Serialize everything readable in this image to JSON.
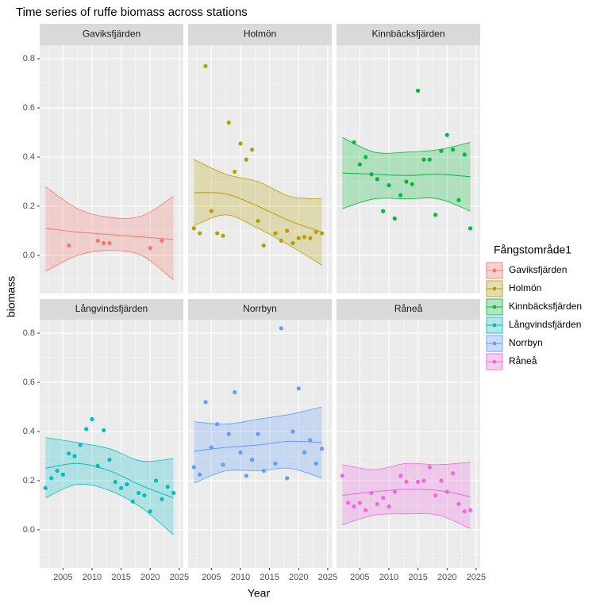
{
  "chart_data": {
    "type": "faceted-scatter-smooth",
    "title": "Time series of ruffe biomass across stations",
    "x_label": "Year",
    "y_label": "biomass",
    "legend_title": "Fångstområde1",
    "xlim": [
      2001,
      2025.7
    ],
    "xticks": [
      2005,
      2010,
      2015,
      2020,
      2025
    ],
    "ylim": [
      -0.155,
      0.855
    ],
    "yticks": [
      0.0,
      0.2,
      0.4,
      0.6,
      0.8
    ],
    "y_tick_labels": [
      "0.0",
      "0.2",
      "0.4",
      "0.6",
      "0.8"
    ],
    "grid": true,
    "fit_x": [
      2002,
      2007.5,
      2013,
      2018.5,
      2024
    ],
    "series": [
      {
        "name": "Gaviksfjärden",
        "color": "#F8766D",
        "x": [
          2006,
          2011,
          2012,
          2013,
          2020,
          2022
        ],
        "values": [
          0.04,
          0.06,
          0.05,
          0.05,
          0.03,
          0.06
        ],
        "fit": [
          0.11,
          0.095,
          0.085,
          0.075,
          0.065
        ],
        "fit_lower": [
          -0.065,
          0.0,
          0.02,
          0.0,
          -0.1
        ],
        "fit_upper": [
          0.28,
          0.19,
          0.155,
          0.16,
          0.24
        ]
      },
      {
        "name": "Holmön",
        "color": "#B79F00",
        "x": [
          2002,
          2003,
          2004,
          2005,
          2006,
          2007,
          2008,
          2009,
          2010,
          2011,
          2012,
          2013,
          2014,
          2016,
          2017,
          2018,
          2019,
          2020,
          2021,
          2022,
          2023,
          2024
        ],
        "values": [
          0.11,
          0.09,
          0.77,
          0.18,
          0.09,
          0.08,
          0.54,
          0.34,
          0.455,
          0.39,
          0.43,
          0.14,
          0.04,
          0.09,
          0.06,
          0.1,
          0.05,
          0.07,
          0.075,
          0.07,
          0.095,
          0.09
        ],
        "fit": [
          0.255,
          0.25,
          0.2,
          0.14,
          0.095
        ],
        "fit_lower": [
          0.12,
          0.165,
          0.11,
          0.04,
          -0.04
        ],
        "fit_upper": [
          0.39,
          0.33,
          0.3,
          0.24,
          0.23
        ]
      },
      {
        "name": "Kinnbäcksfjärden",
        "color": "#00BA38",
        "x": [
          2004,
          2005,
          2006,
          2007,
          2008,
          2009,
          2010,
          2011,
          2012,
          2013,
          2014,
          2015,
          2016,
          2017,
          2018,
          2019,
          2020,
          2021,
          2022,
          2023,
          2024
        ],
        "values": [
          0.46,
          0.37,
          0.4,
          0.33,
          0.31,
          0.18,
          0.285,
          0.15,
          0.245,
          0.3,
          0.29,
          0.67,
          0.39,
          0.39,
          0.165,
          0.425,
          0.49,
          0.43,
          0.225,
          0.41,
          0.11
        ],
        "fit": [
          0.335,
          0.33,
          0.325,
          0.33,
          0.32
        ],
        "fit_lower": [
          0.19,
          0.23,
          0.23,
          0.23,
          0.18
        ],
        "fit_upper": [
          0.48,
          0.42,
          0.42,
          0.43,
          0.46
        ]
      },
      {
        "name": "Långvindsfjärden",
        "color": "#00BFC4",
        "x": [
          2002,
          2003,
          2004,
          2005,
          2006,
          2007,
          2008,
          2009,
          2010,
          2011,
          2012,
          2013,
          2014,
          2015,
          2016,
          2017,
          2018,
          2019,
          2020,
          2021,
          2022,
          2023,
          2024
        ],
        "values": [
          0.17,
          0.21,
          0.24,
          0.225,
          0.31,
          0.3,
          0.345,
          0.41,
          0.45,
          0.26,
          0.405,
          0.285,
          0.195,
          0.17,
          0.185,
          0.115,
          0.15,
          0.14,
          0.075,
          0.2,
          0.125,
          0.175,
          0.15
        ],
        "fit": [
          0.25,
          0.27,
          0.24,
          0.18,
          0.13
        ],
        "fit_lower": [
          0.13,
          0.185,
          0.16,
          0.09,
          -0.02
        ],
        "fit_upper": [
          0.375,
          0.355,
          0.33,
          0.28,
          0.29
        ]
      },
      {
        "name": "Norrbyn",
        "color": "#619CFF",
        "x": [
          2002,
          2003,
          2004,
          2005,
          2006,
          2007,
          2008,
          2009,
          2010,
          2011,
          2012,
          2013,
          2014,
          2016,
          2017,
          2018,
          2019,
          2020,
          2021,
          2022,
          2023,
          2024
        ],
        "values": [
          0.255,
          0.225,
          0.52,
          0.335,
          0.43,
          0.265,
          0.39,
          0.56,
          0.315,
          0.22,
          0.285,
          0.39,
          0.24,
          0.27,
          0.82,
          0.21,
          0.4,
          0.575,
          0.315,
          0.365,
          0.27,
          0.33
        ],
        "fit": [
          0.32,
          0.335,
          0.345,
          0.36,
          0.355
        ],
        "fit_lower": [
          0.19,
          0.24,
          0.24,
          0.25,
          0.21
        ],
        "fit_upper": [
          0.44,
          0.43,
          0.45,
          0.47,
          0.5
        ]
      },
      {
        "name": "Råneå",
        "color": "#F564E3",
        "x": [
          2002,
          2003,
          2004,
          2005,
          2006,
          2007,
          2008,
          2009,
          2010,
          2011,
          2012,
          2013,
          2015,
          2016,
          2017,
          2018,
          2019,
          2020,
          2021,
          2022,
          2023,
          2024
        ],
        "values": [
          0.22,
          0.11,
          0.095,
          0.11,
          0.08,
          0.15,
          0.105,
          0.13,
          0.095,
          0.155,
          0.22,
          0.195,
          0.195,
          0.2,
          0.255,
          0.14,
          0.2,
          0.155,
          0.23,
          0.105,
          0.075,
          0.08
        ],
        "fit": [
          0.14,
          0.155,
          0.165,
          0.16,
          0.135
        ],
        "fit_lower": [
          0.02,
          0.06,
          0.065,
          0.06,
          0.005
        ],
        "fit_upper": [
          0.265,
          0.245,
          0.27,
          0.265,
          0.275
        ]
      }
    ]
  }
}
